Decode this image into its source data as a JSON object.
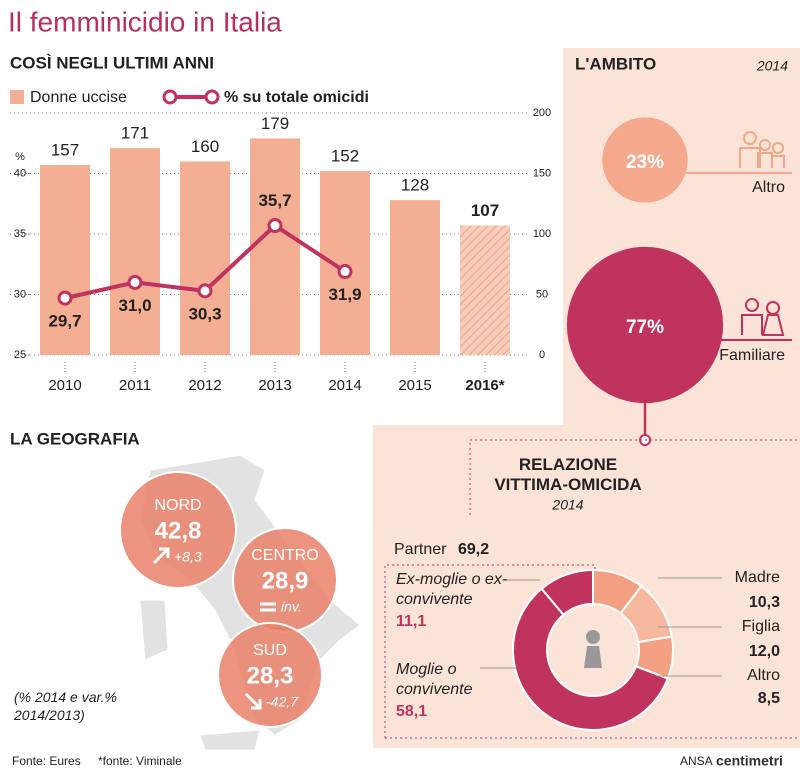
{
  "title": "Il femminicidio in Italia",
  "sources": [
    "Fonte: Eures",
    "*fonte: Viminale"
  ],
  "credit": [
    "ANSA",
    "centimetri"
  ],
  "chart_data": [
    {
      "type": "bar",
      "title": "COSÌ NEGLI ULTIMI ANNI",
      "ylabel": "%",
      "categories": [
        "2010",
        "2011",
        "2012",
        "2013",
        "2014",
        "2015",
        "2016*"
      ],
      "series": [
        {
          "name": "Donne uccise",
          "color": "#f4ae94",
          "axis": "y2",
          "values": [
            157,
            171,
            160,
            179,
            152,
            128,
            107
          ],
          "hatched": [
            "2016*"
          ]
        },
        {
          "name": "% su totale omicidi",
          "color": "#c0335f",
          "type": "line",
          "values": [
            29.7,
            31.0,
            30.3,
            35.7,
            31.9,
            null,
            null
          ],
          "value_labels": [
            "29,7",
            "31,0",
            "30,3",
            "35,7",
            "31,9",
            null,
            null
          ]
        }
      ],
      "ylim": [
        25,
        45
      ],
      "yticks": [
        25,
        30,
        35,
        40
      ],
      "y2lim": [
        0,
        200
      ],
      "y2ticks": [
        0,
        50,
        100,
        150,
        200
      ],
      "grid": true
    },
    {
      "type": "bubble",
      "title": "L'AMBITO",
      "subtitle": "2014",
      "categories": [
        "Altro",
        "Familiare"
      ],
      "values": [
        23,
        77
      ],
      "value_labels": [
        "23%",
        "77%"
      ],
      "colors": [
        "#f4a98c",
        "#c0335f"
      ]
    },
    {
      "type": "donut",
      "title": "RELAZIONE VITTIMA-OMICIDA",
      "subtitle": "2014",
      "categories": [
        "Madre",
        "Figlia",
        "Altro",
        "Moglie o convivente",
        "Ex-moglie o ex-convivente"
      ],
      "values": [
        10.3,
        12.0,
        8.5,
        58.1,
        11.1
      ],
      "value_labels": [
        "10,3",
        "12,0",
        "8,5",
        "58,1",
        "11,1"
      ],
      "colors": [
        "#f3a083",
        "#f7b8a0",
        "#f3a083",
        "#c0335f",
        "#c0335f"
      ],
      "group": {
        "name": "Partner",
        "value": 69.2,
        "value_label": "69,2"
      }
    },
    {
      "type": "map",
      "title": "LA GEOGRAFIA",
      "note": "(% 2014 e var.% 2014/2013)",
      "categories": [
        "NORD",
        "CENTRO",
        "SUD"
      ],
      "values": [
        42.8,
        28.9,
        28.3
      ],
      "value_labels": [
        "42,8",
        "28,9",
        "28,3"
      ],
      "changes": [
        8.3,
        null,
        -42.7
      ],
      "change_labels": [
        "+8,3",
        "inv.",
        "-42,7"
      ],
      "color": "#e9816a"
    }
  ]
}
